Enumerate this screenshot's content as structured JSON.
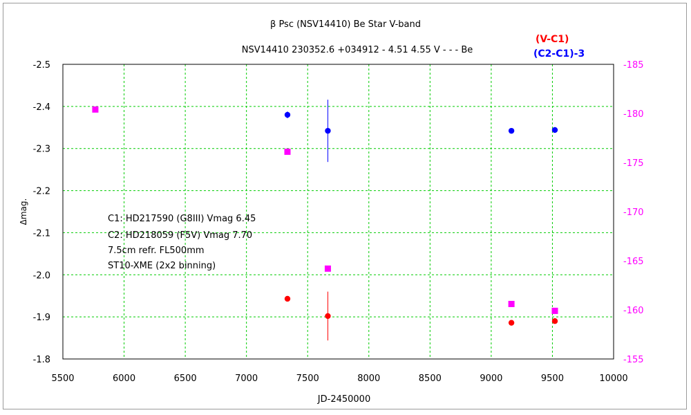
{
  "chart_data": {
    "type": "scatter",
    "title": "β Psc (NSV14410)    Be Star    V-band",
    "subtitle": "NSV14410 230352.6 +034912 - 4.51 4.55 V - - - Be",
    "xlabel": "JD-2450000",
    "ylabel": "Δmag.",
    "xlim": [
      5500,
      10000
    ],
    "ylim": [
      -2.5,
      -1.8
    ],
    "y2lim": [
      -185,
      -155
    ],
    "y_inverted": true,
    "grid": true,
    "xticks": [
      "5500",
      "6000",
      "6500",
      "7000",
      "7500",
      "8000",
      "8500",
      "9000",
      "9500",
      "10000"
    ],
    "yticks": [
      "-2.5",
      "-2.4",
      "-2.3",
      "-2.2",
      "-2.1",
      "-2.0",
      "-1.9",
      "-1.8"
    ],
    "y2ticks": [
      "-185",
      "-180",
      "-175",
      "-170",
      "-165",
      "-160",
      "-155"
    ],
    "legend_placement": "top-right",
    "annotation": [
      "C1: HD217590 (G8III) Vmag 6.45",
      "C2: HD218059 (F5V) Vmag 7.70",
      "7.5cm refr. FL500mm",
      "ST10-XME (2x2 binning)"
    ],
    "series": [
      {
        "name": "(V-C1)",
        "color": "#ff0000",
        "marker": "circle",
        "axis": "left",
        "points": [
          {
            "x": 7335,
            "y": -1.943,
            "err": 0.006
          },
          {
            "x": 7665,
            "y": -1.902,
            "err": 0.058
          },
          {
            "x": 9165,
            "y": -1.886,
            "err": 0.0
          },
          {
            "x": 9520,
            "y": -1.89,
            "err": 0.0
          }
        ]
      },
      {
        "name": "(C2-C1)-3",
        "color": "#0000ff",
        "marker": "circle",
        "axis": "left",
        "points": [
          {
            "x": 7335,
            "y": -2.38,
            "err": 0.008
          },
          {
            "x": 7665,
            "y": -2.342,
            "err": 0.074
          },
          {
            "x": 9165,
            "y": -2.342,
            "err": 0.0
          },
          {
            "x": 9520,
            "y": -2.344,
            "err": 0.0
          }
        ]
      },
      {
        "name": "",
        "color": "#ff00ff",
        "marker": "square",
        "axis": "right",
        "points": [
          {
            "x": 5765,
            "y": -180.4
          },
          {
            "x": 7335,
            "y": -176.1
          },
          {
            "x": 7665,
            "y": -164.2
          },
          {
            "x": 9165,
            "y": -160.6
          },
          {
            "x": 9520,
            "y": -159.9
          }
        ]
      }
    ]
  }
}
